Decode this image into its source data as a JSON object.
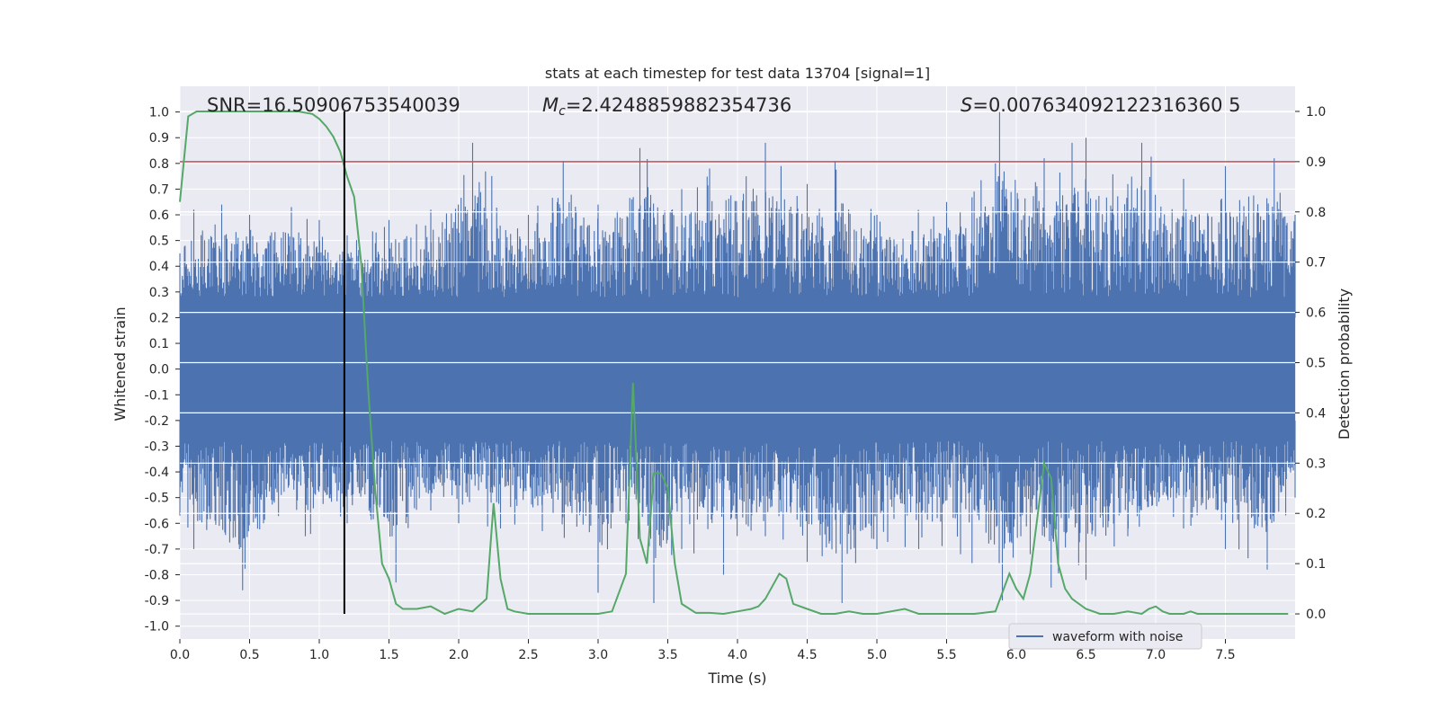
{
  "chart_data": {
    "type": "line",
    "title": "stats at each timestep for test data 13704 [signal=1]",
    "xlabel": "Time (s)",
    "ylabel": "Whitened strain",
    "y2label": "Detection probability",
    "xlim": [
      0.0,
      8.0
    ],
    "ylim": [
      -1.05,
      1.1
    ],
    "y2lim": [
      -0.05,
      1.05
    ],
    "xticks": [
      "0.0",
      "0.5",
      "1.0",
      "1.5",
      "2.0",
      "2.5",
      "3.0",
      "3.5",
      "4.0",
      "4.5",
      "5.0",
      "5.5",
      "6.0",
      "6.5",
      "7.0",
      "7.5"
    ],
    "yticks": [
      "-1.0",
      "-0.9",
      "-0.8",
      "-0.7",
      "-0.6",
      "-0.5",
      "-0.4",
      "-0.3",
      "-0.2",
      "-0.1",
      "0.0",
      "0.1",
      "0.2",
      "0.3",
      "0.4",
      "0.5",
      "0.6",
      "0.7",
      "0.8",
      "0.9",
      "1.0"
    ],
    "y2ticks": [
      "0.0",
      "0.1",
      "0.2",
      "0.3",
      "0.4",
      "0.5",
      "0.6",
      "0.7",
      "0.8",
      "0.9",
      "1.0"
    ],
    "grid": true,
    "legend_placement": "lower-right",
    "legend": [
      "waveform with noise"
    ],
    "annotations": {
      "snr": "SNR=16.50906753540039",
      "mc_symbol": "M",
      "mc_sub": "c",
      "mc_value": "=2.4248859882354736",
      "s_symbol": "S",
      "s_value": "=0.007634092122316360 5"
    },
    "threshold_prob": 0.9,
    "vline_time": 1.18,
    "colors": {
      "waveform": "#4c72b0",
      "probability": "#55a868",
      "threshold": "#c44e52",
      "vline": "#000000",
      "background": "#eaeaf2",
      "grid": "#ffffff"
    },
    "series": [
      {
        "name": "waveform with noise",
        "axis": "left",
        "envelope_upper": [
          [
            0.0,
            0.45
          ],
          [
            0.1,
            0.62
          ],
          [
            0.3,
            0.64
          ],
          [
            0.5,
            0.6
          ],
          [
            0.8,
            0.63
          ],
          [
            1.0,
            0.58
          ],
          [
            1.2,
            0.52
          ],
          [
            1.5,
            0.58
          ],
          [
            1.8,
            0.62
          ],
          [
            2.1,
            0.88
          ],
          [
            2.5,
            0.6
          ],
          [
            2.75,
            0.81
          ],
          [
            3.0,
            0.64
          ],
          [
            3.3,
            0.86
          ],
          [
            3.6,
            0.7
          ],
          [
            3.8,
            0.78
          ],
          [
            4.2,
            0.88
          ],
          [
            4.5,
            0.72
          ],
          [
            4.7,
            0.81
          ],
          [
            5.0,
            0.6
          ],
          [
            5.5,
            0.65
          ],
          [
            5.85,
            0.8
          ],
          [
            5.88,
            1.0
          ],
          [
            6.2,
            0.82
          ],
          [
            6.4,
            0.88
          ],
          [
            6.5,
            0.9
          ],
          [
            6.8,
            0.72
          ],
          [
            6.9,
            0.88
          ],
          [
            7.2,
            0.74
          ],
          [
            7.5,
            0.79
          ],
          [
            7.85,
            0.82
          ],
          [
            8.0,
            0.6
          ]
        ],
        "envelope_lower": [
          [
            0.0,
            -0.57
          ],
          [
            0.1,
            -0.7
          ],
          [
            0.45,
            -0.86
          ],
          [
            0.6,
            -0.6
          ],
          [
            0.9,
            -0.65
          ],
          [
            1.2,
            -0.6
          ],
          [
            1.55,
            -0.83
          ],
          [
            1.8,
            -0.55
          ],
          [
            2.0,
            -0.6
          ],
          [
            2.3,
            -0.62
          ],
          [
            2.6,
            -0.63
          ],
          [
            3.0,
            -0.87
          ],
          [
            3.2,
            -0.6
          ],
          [
            3.4,
            -0.91
          ],
          [
            3.6,
            -0.7
          ],
          [
            3.9,
            -0.8
          ],
          [
            4.2,
            -0.65
          ],
          [
            4.5,
            -0.75
          ],
          [
            4.75,
            -0.91
          ],
          [
            5.0,
            -0.7
          ],
          [
            5.3,
            -0.7
          ],
          [
            5.6,
            -0.72
          ],
          [
            5.9,
            -0.9
          ],
          [
            6.1,
            -0.72
          ],
          [
            6.25,
            -0.85
          ],
          [
            6.5,
            -0.82
          ],
          [
            6.8,
            -0.65
          ],
          [
            7.2,
            -0.62
          ],
          [
            7.5,
            -0.7
          ],
          [
            7.8,
            -0.78
          ],
          [
            8.0,
            -0.5
          ]
        ]
      },
      {
        "name": "",
        "axis": "right",
        "x": [
          0.0,
          0.06,
          0.12,
          0.3,
          0.5,
          0.7,
          0.85,
          0.95,
          1.0,
          1.05,
          1.1,
          1.15,
          1.2,
          1.25,
          1.3,
          1.35,
          1.4,
          1.45,
          1.5,
          1.55,
          1.6,
          1.7,
          1.8,
          1.9,
          2.0,
          2.1,
          2.2,
          2.25,
          2.3,
          2.35,
          2.4,
          2.5,
          2.7,
          3.0,
          3.1,
          3.2,
          3.25,
          3.3,
          3.35,
          3.4,
          3.45,
          3.5,
          3.55,
          3.6,
          3.7,
          3.8,
          3.9,
          4.0,
          4.1,
          4.15,
          4.2,
          4.3,
          4.35,
          4.4,
          4.5,
          4.6,
          4.7,
          4.8,
          4.9,
          5.0,
          5.1,
          5.2,
          5.3,
          5.5,
          5.7,
          5.85,
          5.95,
          6.0,
          6.05,
          6.1,
          6.15,
          6.2,
          6.25,
          6.3,
          6.35,
          6.4,
          6.5,
          6.6,
          6.7,
          6.8,
          6.9,
          6.95,
          7.0,
          7.05,
          7.1,
          7.2,
          7.25,
          7.3,
          7.5,
          7.7,
          7.9,
          7.95
        ],
        "y": [
          0.82,
          0.99,
          1.0,
          1.0,
          1.0,
          1.0,
          1.0,
          0.995,
          0.985,
          0.97,
          0.95,
          0.92,
          0.87,
          0.83,
          0.7,
          0.45,
          0.25,
          0.1,
          0.07,
          0.02,
          0.01,
          0.01,
          0.015,
          0.0,
          0.01,
          0.005,
          0.03,
          0.22,
          0.07,
          0.01,
          0.005,
          0.0,
          0.0,
          0.0,
          0.005,
          0.08,
          0.46,
          0.15,
          0.1,
          0.28,
          0.28,
          0.25,
          0.1,
          0.02,
          0.002,
          0.002,
          0.0,
          0.005,
          0.01,
          0.015,
          0.03,
          0.08,
          0.07,
          0.02,
          0.01,
          0.0,
          0.0,
          0.005,
          0.0,
          0.0,
          0.005,
          0.01,
          0.0,
          0.0,
          0.0,
          0.005,
          0.08,
          0.05,
          0.03,
          0.08,
          0.19,
          0.3,
          0.27,
          0.1,
          0.05,
          0.03,
          0.01,
          0.0,
          0.0,
          0.005,
          0.0,
          0.01,
          0.015,
          0.005,
          0.0,
          0.0,
          0.005,
          0.0,
          0.0,
          0.0,
          0.0,
          0.0
        ]
      }
    ]
  }
}
